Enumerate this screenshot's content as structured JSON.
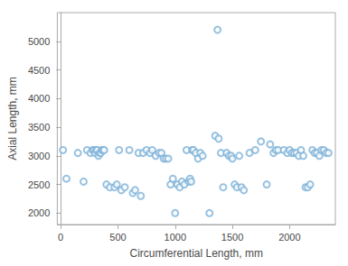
{
  "chart_data": {
    "type": "scatter",
    "xlabel": "Circumferential Length, mm",
    "ylabel": "Axial Length, mm",
    "series": [
      {
        "color": "#7EB3D8",
        "x": [
          20,
          50,
          150,
          200,
          230,
          260,
          280,
          290,
          300,
          310,
          320,
          330,
          340,
          350,
          360,
          370,
          380,
          400,
          430,
          470,
          490,
          510,
          530,
          560,
          600,
          630,
          650,
          680,
          700,
          720,
          750,
          780,
          800,
          830,
          860,
          880,
          900,
          920,
          940,
          960,
          980,
          1000,
          1020,
          1040,
          1060,
          1080,
          1100,
          1120,
          1130,
          1140,
          1150,
          1160,
          1180,
          1200,
          1220,
          1240,
          1300,
          1350,
          1380,
          1400,
          1420,
          1450,
          1470,
          1490,
          1500,
          1520,
          1540,
          1560,
          1580,
          1600,
          1650,
          1700,
          1750,
          1800,
          1830,
          1860,
          1880,
          1900,
          1950,
          1980,
          2000,
          2020,
          2040,
          2060,
          2080,
          2100,
          2120,
          2140,
          2160,
          2180,
          2200,
          2220,
          2240,
          2260,
          2280,
          2300,
          2320,
          2340
        ],
        "values": [
          3100,
          2600,
          3050,
          2550,
          3100,
          3050,
          3100,
          3100,
          3050,
          3100,
          3100,
          3000,
          3050,
          3050,
          3100,
          3100,
          3100,
          2500,
          2450,
          2450,
          2500,
          3100,
          2400,
          2450,
          3100,
          2350,
          2400,
          3050,
          2300,
          3050,
          3100,
          3050,
          3100,
          3000,
          3050,
          3050,
          2950,
          2950,
          2950,
          2500,
          2600,
          2000,
          2500,
          2450,
          2550,
          2500,
          3100,
          2550,
          2600,
          2550,
          3100,
          3100,
          3050,
          2950,
          3050,
          3000,
          2000,
          3350,
          3300,
          3050,
          2450,
          3050,
          3000,
          3000,
          2950,
          2500,
          2450,
          3000,
          2450,
          2400,
          3050,
          3100,
          3250,
          2500,
          3200,
          3050,
          3100,
          3100,
          3100,
          3050,
          3100,
          3050,
          3050,
          3050,
          3000,
          3100,
          3000,
          2450,
          2450,
          2500,
          3100,
          3050,
          3050,
          3000,
          3100,
          3100,
          3050,
          3050
        ]
      },
      {
        "color": "#7EB3D8",
        "x": [
          1370
        ],
        "values": [
          5200
        ]
      }
    ],
    "xlim": [
      -30,
      2400
    ],
    "ylim": [
      1800,
      5500
    ],
    "xticks": [
      0,
      500,
      1000,
      1500,
      2000
    ],
    "yticks": [
      2000,
      2500,
      3000,
      3500,
      4000,
      4500,
      5000
    ],
    "grid": false
  }
}
